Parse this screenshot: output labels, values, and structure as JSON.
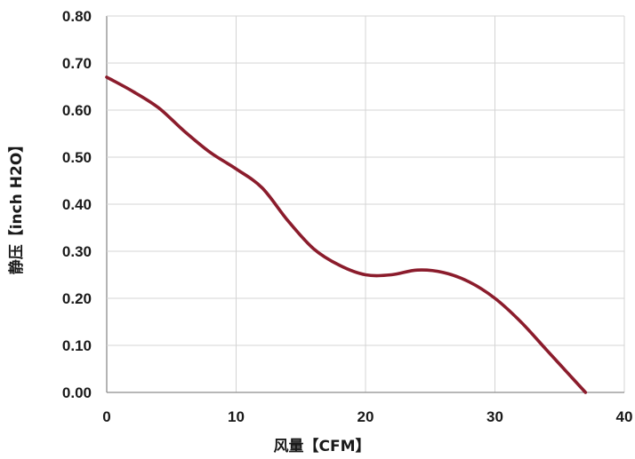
{
  "chart_data": {
    "type": "line",
    "title": "",
    "xlabel": "风量【CFM】",
    "ylabel": "静压【inch H2O】",
    "xlim": [
      0,
      40
    ],
    "ylim": [
      0,
      0.8
    ],
    "x_ticks": [
      "0",
      "10",
      "20",
      "30",
      "40"
    ],
    "y_ticks": [
      "0.00",
      "0.10",
      "0.20",
      "0.30",
      "0.40",
      "0.50",
      "0.60",
      "0.70",
      "0.80"
    ],
    "grid": true,
    "legend": "none",
    "series": [
      {
        "color": "#8b1c2c",
        "x": [
          0,
          2,
          4,
          6,
          8,
          10,
          12,
          14,
          16,
          18,
          20,
          22,
          24,
          26,
          28,
          30,
          32,
          34,
          36,
          37
        ],
        "y": [
          0.67,
          0.64,
          0.605,
          0.555,
          0.51,
          0.475,
          0.435,
          0.365,
          0.305,
          0.27,
          0.25,
          0.25,
          0.26,
          0.255,
          0.235,
          0.2,
          0.15,
          0.09,
          0.03,
          0.0
        ]
      }
    ]
  }
}
